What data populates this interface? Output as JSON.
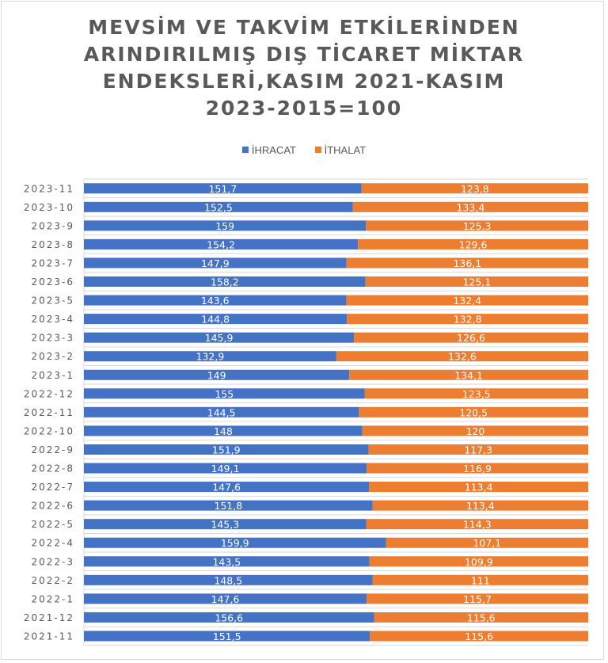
{
  "chart_data": {
    "type": "bar",
    "orientation": "horizontal",
    "stacking": "percent",
    "title_lines": [
      "MEVSİM VE TAKVİM ETKİLERİNDEN",
      "ARINDIRILMIŞ DIŞ TİCARET MİKTAR",
      "ENDEKSLERİ,KASIM 2021-KASIM",
      "2023-2015=100"
    ],
    "legend_position": "top",
    "xlabel": "",
    "ylabel": "",
    "grid": true,
    "categories": [
      "2023-11",
      "2023-10",
      "2023-9",
      "2023-8",
      "2023-7",
      "2023-6",
      "2023-5",
      "2023-4",
      "2023-3",
      "2023-2",
      "2023-1",
      "2022-12",
      "2022-11",
      "2022-10",
      "2022-9",
      "2022-8",
      "2022-7",
      "2022-6",
      "2022-5",
      "2022-4",
      "2022-3",
      "2022-2",
      "2022-1",
      "2021-12",
      "2021-11"
    ],
    "series": [
      {
        "name": "İHRACAT",
        "color": "#4472c4",
        "values": [
          151.7,
          152.5,
          159,
          154.2,
          147.9,
          158.2,
          143.6,
          144.8,
          145.9,
          132.9,
          149,
          155,
          144.5,
          148,
          151.9,
          149.1,
          147.6,
          151.8,
          145.3,
          159.9,
          143.5,
          148.5,
          147.6,
          156.6,
          151.5
        ],
        "labels": [
          "151,7",
          "152,5",
          "159",
          "154,2",
          "147,9",
          "158,2",
          "143,6",
          "144,8",
          "145,9",
          "132,9",
          "149",
          "155",
          "144,5",
          "148",
          "151,9",
          "149,1",
          "147,6",
          "151,8",
          "145,3",
          "159,9",
          "143,5",
          "148,5",
          "147,6",
          "156,6",
          "151,5"
        ]
      },
      {
        "name": "İTHALAT",
        "color": "#ed7d31",
        "values": [
          123.8,
          133.4,
          125.3,
          129.6,
          136.1,
          125.1,
          132.4,
          132.8,
          126.6,
          132.6,
          134.1,
          123.5,
          120.5,
          120,
          117.3,
          116.9,
          113.4,
          113.4,
          114.3,
          107.1,
          109.9,
          111,
          115.7,
          115.6,
          115.6
        ],
        "labels": [
          "123,8",
          "133,4",
          "125,3",
          "129,6",
          "136,1",
          "125,1",
          "132,4",
          "132,8",
          "126,6",
          "132,6",
          "134,1",
          "123,5",
          "120,5",
          "120",
          "117,3",
          "116,9",
          "113,4",
          "113,4",
          "114,3",
          "107,1",
          "109,9",
          "111",
          "115,7",
          "115,6",
          "115,6"
        ]
      }
    ]
  }
}
